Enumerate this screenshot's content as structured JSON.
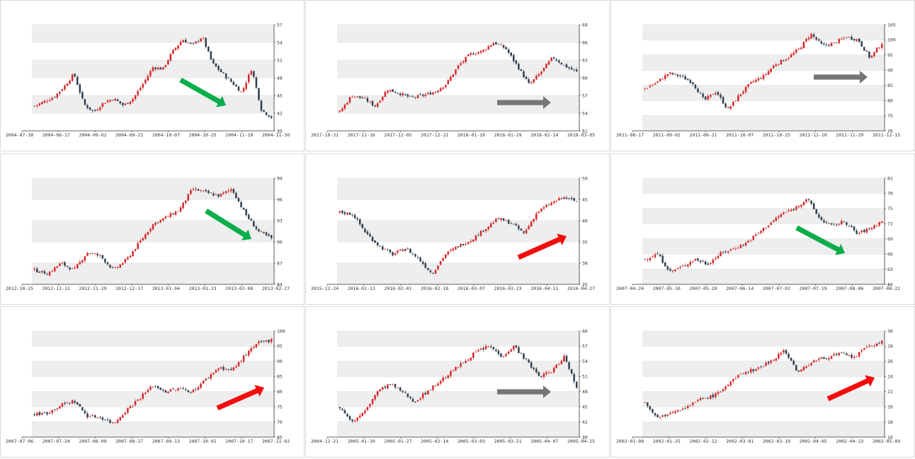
{
  "colors": {
    "up": "#d62728",
    "down": "#2f3e4e",
    "band": "#eeeeee",
    "green_arrow": "#0aae4a",
    "red_arrow": "#f20d0d",
    "gray_arrow": "#767676"
  },
  "chart_data": [
    {
      "type": "candlestick",
      "x_ticks": [
        "2004-07-30",
        "2004-08-17",
        "2004-09-02",
        "2004-09-21",
        "2004-10-07",
        "2004-10-25",
        "2004-11-10",
        "2004-11-30"
      ],
      "y_ticks": [
        39,
        42,
        45,
        48,
        51,
        54,
        57
      ],
      "ylim": [
        39,
        57
      ],
      "close_path": [
        43.2,
        44.0,
        44.8,
        46.5,
        48.7,
        43.5,
        42.2,
        43.8,
        44.5,
        43.3,
        44.5,
        47.0,
        49.8,
        49.5,
        52.5,
        54.5,
        53.5,
        55.0,
        50.5,
        48.8,
        47.2,
        45.5,
        49.6,
        42.5,
        41.3
      ],
      "arrow": "down"
    },
    {
      "type": "candlestick",
      "x_ticks": [
        "2017-10-31",
        "2017-11-16",
        "2017-12-05",
        "2017-12-21",
        "2018-01-10",
        "2018-01-29",
        "2018-02-14",
        "2018-03-05"
      ],
      "y_ticks": [
        51,
        54,
        57,
        60,
        63,
        66,
        69
      ],
      "ylim": [
        51,
        69
      ],
      "close_path": [
        54.2,
        57.0,
        56.5,
        55.2,
        58.0,
        57.4,
        56.6,
        57.0,
        57.6,
        59.0,
        62.0,
        64.0,
        64.5,
        66.0,
        65.0,
        62.0,
        58.8,
        61.0,
        63.5,
        62.0,
        61.0
      ],
      "arrow": "flat"
    },
    {
      "type": "candlestick",
      "x_ticks": [
        "2011-08-17",
        "2011-09-02",
        "2011-09-21",
        "2011-10-07",
        "2011-10-25",
        "2011-11-10",
        "2011-11-29",
        "2011-12-15"
      ],
      "y_ticks": [
        70,
        75,
        80,
        85,
        90,
        95,
        100,
        105
      ],
      "ylim": [
        70,
        105
      ],
      "close_path": [
        84,
        86,
        89,
        88,
        86,
        80,
        83,
        77,
        82,
        86,
        88,
        92,
        94,
        97,
        102,
        98,
        99,
        101,
        100,
        94,
        99
      ],
      "arrow": "flat"
    },
    {
      "type": "candlestick",
      "x_ticks": [
        "2012-10-25",
        "2012-11-12",
        "2012-11-29",
        "2012-12-17",
        "2013-01-04",
        "2013-01-23",
        "2013-02-08",
        "2013-02-27"
      ],
      "y_ticks": [
        84,
        87,
        90,
        93,
        96,
        99
      ],
      "ylim": [
        84,
        99
      ],
      "close_path": [
        86,
        85.5,
        87,
        86,
        88.5,
        88,
        86,
        87.5,
        90,
        92.5,
        93.5,
        94.5,
        97.5,
        97,
        96.5,
        97.5,
        94,
        91.5,
        90.5
      ],
      "arrow": "down"
    },
    {
      "type": "candlestick",
      "x_ticks": [
        "2015-12-24",
        "2016-01-13",
        "2016-02-01",
        "2016-02-18",
        "2016-03-07",
        "2016-03-23",
        "2016-04-11",
        "2016-04-27"
      ],
      "y_ticks": [
        25,
        30,
        35,
        40,
        45,
        50
      ],
      "ylim": [
        25,
        50
      ],
      "close_path": [
        42,
        41.5,
        37,
        34,
        32,
        33.5,
        31,
        27.5,
        32,
        34,
        35.5,
        38,
        40.5,
        39.5,
        37,
        42,
        44,
        45.5,
        44.5
      ],
      "arrow": "up"
    },
    {
      "type": "candlestick",
      "x_ticks": [
        "2007-04-24",
        "2007-05-10",
        "2007-05-29",
        "2007-06-14",
        "2007-07-02",
        "2007-07-19",
        "2007-08-06",
        "2007-08-22"
      ],
      "y_ticks": [
        60,
        63,
        66,
        69,
        72,
        75,
        78,
        81
      ],
      "ylim": [
        60,
        81
      ],
      "close_path": [
        65,
        66,
        62.5,
        63.5,
        65,
        64,
        66,
        67,
        68,
        70,
        72,
        74,
        75,
        77,
        73,
        71.5,
        72.5,
        70,
        71,
        72.5
      ],
      "arrow": "down"
    },
    {
      "type": "candlestick",
      "x_ticks": [
        "2007-07-06",
        "2007-07-24",
        "2007-08-09",
        "2007-08-27",
        "2007-09-13",
        "2007-10-01",
        "2007-10-17",
        "2007-11-02"
      ],
      "y_ticks": [
        65,
        70,
        75,
        80,
        85,
        90,
        95,
        100
      ],
      "ylim": [
        65,
        100
      ],
      "close_path": [
        72.5,
        73,
        75.5,
        77,
        72,
        71.5,
        69.5,
        74,
        78,
        82,
        80,
        81,
        80,
        84,
        88,
        87,
        92,
        96,
        97
      ],
      "arrow": "up"
    },
    {
      "type": "candlestick",
      "x_ticks": [
        "2004-12-21",
        "2005-01-10",
        "2005-01-27",
        "2005-02-14",
        "2005-03-03",
        "2005-03-21",
        "2005-04-07",
        "2005-04-25"
      ],
      "y_ticks": [
        39,
        42,
        45,
        48,
        51,
        54,
        57,
        60
      ],
      "ylim": [
        39,
        60
      ],
      "close_path": [
        45,
        42,
        44,
        48,
        49.5,
        48,
        46,
        48,
        50,
        52,
        54,
        56,
        57,
        55,
        57,
        54,
        51,
        52,
        55,
        49
      ],
      "arrow": "flat"
    },
    {
      "type": "candlestick",
      "x_ticks": [
        "2002-01-08",
        "2002-01-25",
        "2002-02-12",
        "2002-03-01",
        "2002-03-19",
        "2002-04-05",
        "2002-04-23",
        "2002-05-09"
      ],
      "y_ticks": [
        16,
        18,
        20,
        22,
        24,
        26,
        28,
        30
      ],
      "ylim": [
        16,
        30
      ],
      "close_path": [
        20.5,
        18.5,
        19.5,
        20,
        21,
        21.5,
        23,
        24.5,
        25,
        26,
        27.5,
        24.5,
        26,
        26.5,
        27,
        26.5,
        28,
        28.5
      ],
      "arrow": "up"
    }
  ]
}
